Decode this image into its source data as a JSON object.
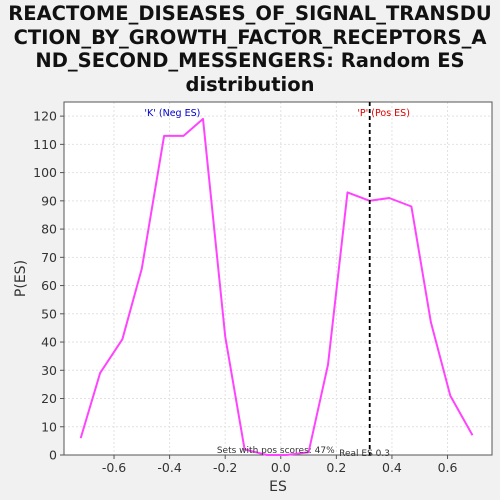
{
  "chart_data": {
    "type": "line",
    "title": "REACTOME_DISEASES_OF_SIGNAL_TRANSDUCTION_BY_GROWTH_FACTOR_RECEPTORS_AND_SECOND_MESSENGERS: Random ES distribution",
    "title_lines": [
      "REACTOME_DISEASES_OF_SIGNAL_TRANSDU",
      "CTION_BY_GROWTH_FACTOR_RECEPTORS_A",
      "ND_SECOND_MESSENGERS: Random ES",
      "distribution"
    ],
    "xlabel": "ES",
    "ylabel": "P(ES)",
    "xlim": [
      -0.78,
      0.76
    ],
    "ylim": [
      0,
      125
    ],
    "xticks": [
      -0.6,
      -0.4,
      -0.2,
      0.0,
      0.2,
      0.4,
      0.6
    ],
    "xtick_labels": [
      "-0.6",
      "-0.4",
      "-0.2",
      "0.0",
      "0.2",
      "0.4",
      "0.6"
    ],
    "yticks": [
      0,
      10,
      20,
      30,
      40,
      50,
      60,
      70,
      80,
      90,
      100,
      110,
      120
    ],
    "ytick_labels": [
      "0",
      "10",
      "20",
      "30",
      "40",
      "50",
      "60",
      "70",
      "80",
      "90",
      "100",
      "110",
      "120"
    ],
    "grid": true,
    "series": [
      {
        "color": "#ff44ff",
        "x": [
          -0.72,
          -0.65,
          -0.57,
          -0.5,
          -0.42,
          -0.35,
          -0.28,
          -0.2,
          -0.13,
          -0.05,
          0.02,
          0.1,
          0.17,
          0.24,
          0.32,
          0.39,
          0.47,
          0.54,
          0.61,
          0.69
        ],
        "y": [
          6,
          29,
          41,
          66,
          113,
          113,
          119,
          42,
          2,
          0,
          0,
          1,
          32,
          93,
          90,
          91,
          88,
          47,
          21,
          7
        ]
      }
    ],
    "real_es": 0.32,
    "annotations": {
      "neg_label": "'K' (Neg ES)",
      "pos_label": "'P' (Pos ES)",
      "pos_scores": "Sets with pos scores: 47%",
      "real_es_label": "Real ES 0.3"
    },
    "colors": {
      "line": "#ff44ff",
      "neg_label": "#0000cc",
      "pos_label": "#dd0000",
      "real_es_line": "#000000"
    }
  }
}
